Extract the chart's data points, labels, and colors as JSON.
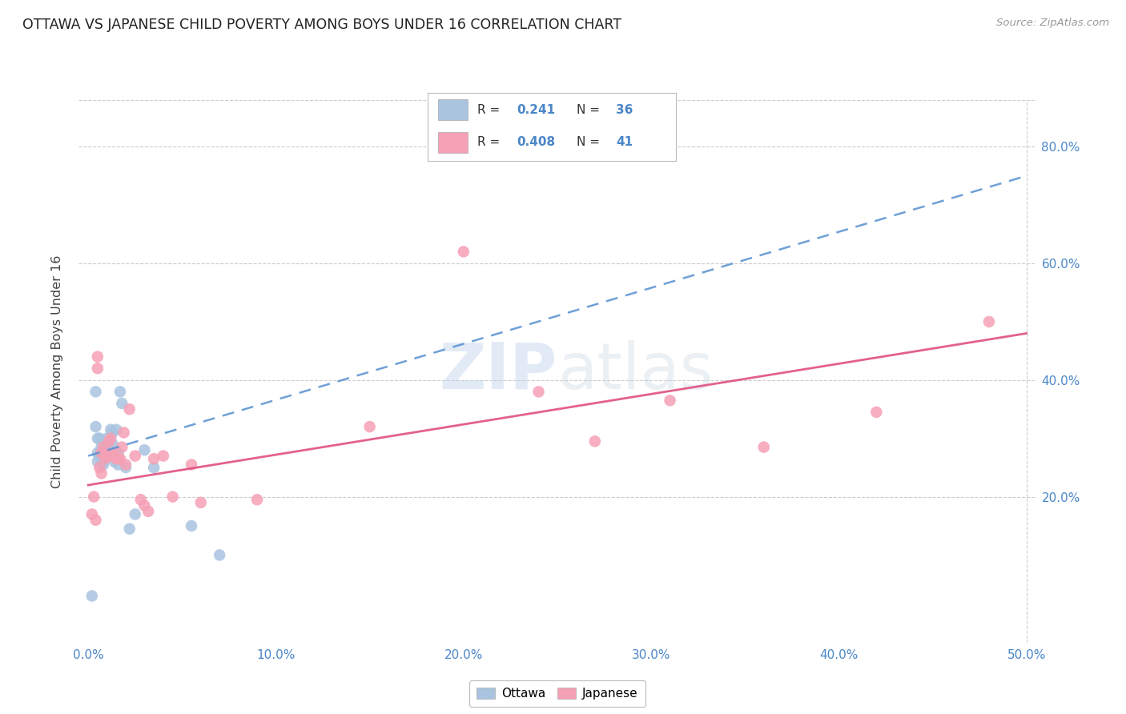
{
  "title": "OTTAWA VS JAPANESE CHILD POVERTY AMONG BOYS UNDER 16 CORRELATION CHART",
  "source": "Source: ZipAtlas.com",
  "ylabel": "Child Poverty Among Boys Under 16",
  "xlim": [
    -0.005,
    0.505
  ],
  "ylim": [
    -0.05,
    0.88
  ],
  "ottawa_R": 0.241,
  "ottawa_N": 36,
  "japanese_R": 0.408,
  "japanese_N": 41,
  "ottawa_color": "#aac4e0",
  "japanese_color": "#f5a0b5",
  "trend_ottawa_color": "#5590d0",
  "trend_japanese_color": "#e05080",
  "ottawa_x": [
    0.002,
    0.004,
    0.004,
    0.005,
    0.005,
    0.005,
    0.006,
    0.006,
    0.007,
    0.007,
    0.007,
    0.008,
    0.008,
    0.008,
    0.009,
    0.009,
    0.01,
    0.01,
    0.011,
    0.012,
    0.012,
    0.013,
    0.013,
    0.014,
    0.015,
    0.016,
    0.016,
    0.017,
    0.018,
    0.02,
    0.022,
    0.025,
    0.03,
    0.035,
    0.055,
    0.07
  ],
  "ottawa_y": [
    0.03,
    0.38,
    0.32,
    0.275,
    0.3,
    0.26,
    0.27,
    0.3,
    0.275,
    0.285,
    0.255,
    0.26,
    0.275,
    0.255,
    0.28,
    0.295,
    0.285,
    0.3,
    0.27,
    0.28,
    0.315,
    0.31,
    0.29,
    0.26,
    0.315,
    0.255,
    0.275,
    0.38,
    0.36,
    0.25,
    0.145,
    0.17,
    0.28,
    0.25,
    0.15,
    0.1
  ],
  "japanese_x": [
    0.002,
    0.003,
    0.004,
    0.005,
    0.005,
    0.006,
    0.007,
    0.007,
    0.008,
    0.009,
    0.01,
    0.011,
    0.012,
    0.012,
    0.013,
    0.014,
    0.015,
    0.016,
    0.017,
    0.018,
    0.019,
    0.02,
    0.022,
    0.025,
    0.028,
    0.03,
    0.032,
    0.035,
    0.04,
    0.045,
    0.055,
    0.06,
    0.09,
    0.15,
    0.2,
    0.24,
    0.27,
    0.31,
    0.36,
    0.42,
    0.48
  ],
  "japanese_y": [
    0.17,
    0.2,
    0.16,
    0.44,
    0.42,
    0.25,
    0.24,
    0.275,
    0.285,
    0.265,
    0.27,
    0.295,
    0.27,
    0.3,
    0.275,
    0.27,
    0.265,
    0.265,
    0.265,
    0.285,
    0.31,
    0.255,
    0.35,
    0.27,
    0.195,
    0.185,
    0.175,
    0.265,
    0.27,
    0.2,
    0.255,
    0.19,
    0.195,
    0.32,
    0.62,
    0.38,
    0.295,
    0.365,
    0.285,
    0.345,
    0.5
  ],
  "watermark_zip": "ZIP",
  "watermark_atlas": "atlas",
  "background_color": "#ffffff",
  "grid_color": "#cccccc"
}
